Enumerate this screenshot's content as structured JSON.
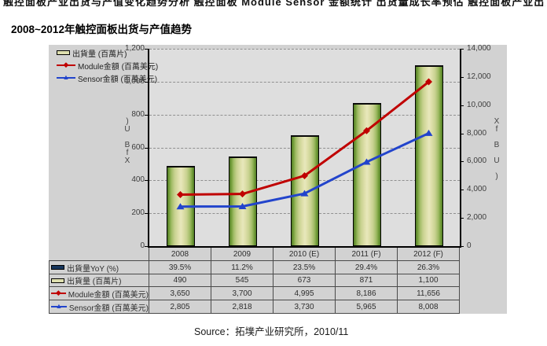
{
  "page": {
    "clipped_top_text": "触控面板产业出货与产值变化趋势分析 触控面板 Module Sensor 金额统计 出货量成长率预估 触控面板产业出货与产值变化趋势分析 出货量",
    "title": "2008~2012年触控面板出货与产值趋势",
    "source": "Source：拓墣产业研究所，2010/11"
  },
  "colors": {
    "module_red": "#c00000",
    "sensor_blue": "#2244cc",
    "bar_face_khaki": "#dedfae",
    "yoy_navy": "#17365d",
    "panel_gray": "#d2d2d2",
    "plot_gray": "#dedede"
  },
  "chart_data": {
    "type": "bar+line combo with data table",
    "categories": [
      "2008",
      "2009",
      "2010 (E)",
      "2011 (F)",
      "2012 (F)"
    ],
    "series": [
      {
        "name": "出貨量YoY (%)",
        "plot": "table-only",
        "axis": "none",
        "icon": "bar-navy",
        "values_text": [
          "39.5%",
          "11.2%",
          "23.5%",
          "29.4%",
          "26.3%"
        ]
      },
      {
        "name": "出貨量 (百萬片)",
        "plot": "bar",
        "axis": "left",
        "icon": "bar-khaki",
        "values": [
          490,
          545,
          673,
          871,
          1100
        ],
        "values_text": [
          "490",
          "545",
          "673",
          "871",
          "1,100"
        ]
      },
      {
        "name": "Module金額 (百萬美元)",
        "plot": "line",
        "axis": "right",
        "icon": "line-diamond-red",
        "marker": "diamond",
        "color": "#c00000",
        "values": [
          3650,
          3700,
          4995,
          8186,
          11656
        ],
        "values_text": [
          "3,650",
          "3,700",
          "4,995",
          "8,186",
          "11,656"
        ]
      },
      {
        "name": "Sensor金額 (百萬美元)",
        "plot": "line",
        "axis": "right",
        "icon": "line-triangle-blue",
        "marker": "triangle",
        "color": "#2244cc",
        "values": [
          2805,
          2818,
          3730,
          5965,
          8008
        ],
        "values_text": [
          "2,805",
          "2,818",
          "3,730",
          "5,965",
          "8,008"
        ]
      }
    ],
    "left_axis": {
      "min": 0,
      "max": 1200,
      "step": 200,
      "ticks": [
        "1,200",
        "1,000",
        "800",
        "600",
        "400",
        "200",
        "0"
      ],
      "title_chars": [
        ")",
        "U",
        "",
        "B",
        "f",
        "X"
      ]
    },
    "right_axis": {
      "min": 0,
      "max": 14000,
      "step": 2000,
      "ticks": [
        "14,000",
        "12,000",
        "10,000",
        "8,000",
        "6,000",
        "4,000",
        "2,000",
        "0"
      ],
      "title_chars": [
        "X",
        "f",
        "",
        "B",
        "",
        "U",
        "",
        ")"
      ]
    },
    "legend": [
      {
        "icon": "bar-khaki",
        "label": "出貨量 (百萬片)"
      },
      {
        "icon": "line-diamond-red",
        "label": "Module金額 (百萬美元)"
      },
      {
        "icon": "line-triangle-blue",
        "label": "Sensor金額 (百萬美元)"
      }
    ],
    "grid": "horizontal dashed, legend top-left inside plot, data table attached below x-axis"
  }
}
